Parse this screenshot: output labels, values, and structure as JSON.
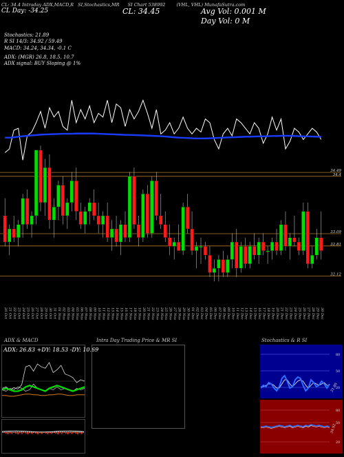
{
  "header": {
    "line1": [
      "CL: 34.4 Intraday ADX,MACD,R",
      "SI,Stochastics,MR",
      "SI Chart 538992",
      "(VHL, VHL) MunafaSutra.com"
    ],
    "line2_left": "CL Day: -34.25",
    "cl": "CL: 34.45",
    "avg_vol": "Avg Vol: 0.001 M",
    "day_vol": "Day Vol: 0   M",
    "stoch": "Stochastics: 21.89",
    "rsi": "R                SI 14/3: 34.92 / 59.49",
    "macd": "MACD: 34.24, 34.34, -0.1 C",
    "adx": "ADX:                                   (MGR) 26.8, 18.5, 10.7",
    "adx_signal": "ADX  signal:                                   BUY Sloping @ 1%"
  },
  "colors": {
    "up": "#00e000",
    "down": "#ff1a1a",
    "ma": "#1a3cff",
    "price_line": "#ffffff",
    "level": "#b07a2a",
    "rsi_bg": "#8a0000",
    "stoch_bg": "#000090"
  },
  "chart_data": [
    {
      "type": "candlestick",
      "ylim": [
        31.5,
        35.2
      ],
      "levels": [
        {
          "value": 34.49,
          "label": "34.49"
        },
        {
          "value": 34.4,
          "label": "34.4"
        },
        {
          "value": 33.09,
          "label": "33.09"
        },
        {
          "value": 32.81,
          "label": "32.81"
        },
        {
          "value": 32.12,
          "label": "32.12"
        }
      ],
      "x": [
        "20 Oct",
        "21 Oct",
        "22 Oct",
        "23 Oct",
        "24 Oct",
        "25 Oct",
        "26 Oct",
        "27 Oct",
        "28 Oct",
        "29 Oct",
        "30 Oct",
        "31 Oct",
        "01 Nov",
        "02 Nov",
        "03 Nov",
        "04 Nov",
        "05 Nov",
        "06 Nov",
        "07 Nov",
        "08 Nov",
        "09 Nov",
        "10 Nov",
        "11 Nov",
        "12 Nov",
        "13 Nov",
        "14 Nov",
        "15 Nov",
        "16 Nov",
        "17 Nov",
        "18 Nov",
        "19 Nov",
        "20 Nov",
        "21 Nov",
        "22 Nov",
        "23 Nov",
        "24 Nov",
        "25 Nov",
        "26 Nov",
        "27 Nov",
        "28 Nov",
        "29 Nov",
        "30 Nov",
        "01 Dec",
        "02 Dec",
        "03 Dec",
        "04 Dec",
        "05 Dec",
        "06 Dec",
        "07 Dec",
        "08 Dec",
        "09 Dec",
        "10 Dec",
        "11 Dec",
        "12 Dec",
        "13 Dec",
        "14 Dec",
        "15 Dec",
        "16 Dec",
        "17 Dec",
        "18 Dec",
        "19 Dec",
        "20 Dec",
        "21 Dec",
        "22 Dec",
        "23 Dec",
        "24 Dec",
        "25 Dec",
        "26 Dec",
        "27 Dec",
        "28 Dec",
        "29 Dec",
        "30 Dec"
      ],
      "candles": [
        [
          33.5,
          33.9,
          32.8,
          32.9
        ],
        [
          32.9,
          33.3,
          32.6,
          33.2
        ],
        [
          33.2,
          33.5,
          32.9,
          33.0
        ],
        [
          33.0,
          33.4,
          32.8,
          33.3
        ],
        [
          33.3,
          34.0,
          33.0,
          33.9
        ],
        [
          33.9,
          34.1,
          33.2,
          33.3
        ],
        [
          33.3,
          33.6,
          33.0,
          33.5
        ],
        [
          33.5,
          35.0,
          33.3,
          35.0
        ],
        [
          35.0,
          35.1,
          33.6,
          33.8
        ],
        [
          33.8,
          34.8,
          33.5,
          34.6
        ],
        [
          34.6,
          34.9,
          33.2,
          33.4
        ],
        [
          33.4,
          33.9,
          33.0,
          33.7
        ],
        [
          33.7,
          34.3,
          33.4,
          34.2
        ],
        [
          34.2,
          34.4,
          33.3,
          33.5
        ],
        [
          33.5,
          33.9,
          33.2,
          33.8
        ],
        [
          33.8,
          34.5,
          33.6,
          34.3
        ],
        [
          34.3,
          34.6,
          33.4,
          33.6
        ],
        [
          33.6,
          33.8,
          33.2,
          33.3
        ],
        [
          33.3,
          33.7,
          33.1,
          33.6
        ],
        [
          33.6,
          33.9,
          33.3,
          33.8
        ],
        [
          33.8,
          34.1,
          33.4,
          33.5
        ],
        [
          33.5,
          33.8,
          33.1,
          33.3
        ],
        [
          33.3,
          33.6,
          33.0,
          33.5
        ],
        [
          33.5,
          33.8,
          32.9,
          33.0
        ],
        [
          33.0,
          33.4,
          32.7,
          33.2
        ],
        [
          33.2,
          33.5,
          32.8,
          32.9
        ],
        [
          32.9,
          33.4,
          32.6,
          33.3
        ],
        [
          33.3,
          33.6,
          32.9,
          33.0
        ],
        [
          33.0,
          34.5,
          32.9,
          34.4
        ],
        [
          34.4,
          34.6,
          33.2,
          33.3
        ],
        [
          33.3,
          33.5,
          32.8,
          33.0
        ],
        [
          33.0,
          34.1,
          32.9,
          34.0
        ],
        [
          34.0,
          34.2,
          33.0,
          33.1
        ],
        [
          33.1,
          34.4,
          33.0,
          34.3
        ],
        [
          34.3,
          34.5,
          33.4,
          33.5
        ],
        [
          33.5,
          34.0,
          33.2,
          33.3
        ],
        [
          33.3,
          33.6,
          32.9,
          33.0
        ],
        [
          33.0,
          33.3,
          32.6,
          32.8
        ],
        [
          32.8,
          33.0,
          32.5,
          32.9
        ],
        [
          32.9,
          33.3,
          32.7,
          32.7
        ],
        [
          32.7,
          33.8,
          32.6,
          33.7
        ],
        [
          33.7,
          34.0,
          33.1,
          33.2
        ],
        [
          33.2,
          33.6,
          32.6,
          32.7
        ],
        [
          32.7,
          32.9,
          32.3,
          32.8
        ],
        [
          32.8,
          33.0,
          32.4,
          32.8
        ],
        [
          32.8,
          32.9,
          32.5,
          32.6
        ],
        [
          32.6,
          32.8,
          32.1,
          32.2
        ],
        [
          32.2,
          32.5,
          32.0,
          32.3
        ],
        [
          32.3,
          32.6,
          32.0,
          32.5
        ],
        [
          32.5,
          32.7,
          32.1,
          32.2
        ],
        [
          32.2,
          32.6,
          32.1,
          32.5
        ],
        [
          32.5,
          33.1,
          32.3,
          32.9
        ],
        [
          32.9,
          33.2,
          32.1,
          32.3
        ],
        [
          32.3,
          32.9,
          32.2,
          32.8
        ],
        [
          32.8,
          33.0,
          32.3,
          32.4
        ],
        [
          32.4,
          32.9,
          32.3,
          32.8
        ],
        [
          32.8,
          33.1,
          32.5,
          32.6
        ],
        [
          32.6,
          33.0,
          32.4,
          32.9
        ],
        [
          32.9,
          33.1,
          32.6,
          32.7
        ],
        [
          32.7,
          32.8,
          32.4,
          32.7
        ],
        [
          32.7,
          33.0,
          32.5,
          32.9
        ],
        [
          32.9,
          33.2,
          32.6,
          32.7
        ],
        [
          32.7,
          33.4,
          32.6,
          33.3
        ],
        [
          33.3,
          33.6,
          32.7,
          32.8
        ],
        [
          32.8,
          33.1,
          32.5,
          33.0
        ],
        [
          33.0,
          33.5,
          32.8,
          32.9
        ],
        [
          32.9,
          33.0,
          32.6,
          32.7
        ],
        [
          32.7,
          33.8,
          32.6,
          33.6
        ],
        [
          33.6,
          33.8,
          32.3,
          32.4
        ],
        [
          32.4,
          32.8,
          32.3,
          32.6
        ],
        [
          32.6,
          33.2,
          32.5,
          33.0
        ],
        [
          33.0,
          33.6,
          32.5,
          32.7
        ]
      ],
      "close_line": [
        40,
        38,
        28,
        27,
        44,
        31,
        29,
        24,
        18,
        27,
        16,
        21,
        18,
        26,
        28,
        12,
        24,
        17,
        22,
        15,
        24,
        19,
        21,
        12,
        24,
        14,
        16,
        26,
        17,
        22,
        18,
        12,
        19,
        27,
        17,
        30,
        28,
        24,
        30,
        27,
        21,
        27,
        30,
        27,
        29,
        22,
        24,
        33,
        38,
        30,
        27,
        31,
        22,
        24,
        27,
        30,
        24,
        27,
        35,
        30,
        21,
        28,
        22,
        38,
        34,
        27,
        29,
        33,
        30,
        27,
        29,
        33
      ],
      "ma_line": [
        32,
        32,
        31.8,
        31.5,
        31.2,
        31.0,
        30.8,
        30.6,
        30.4,
        30.3,
        30.2,
        30.1,
        30.0,
        29.9,
        29.9,
        29.9,
        29.8,
        29.8,
        29.8,
        29.8,
        29.8,
        29.9,
        30.0,
        30.1,
        30.2,
        30.3,
        30.4,
        30.5,
        30.5,
        30.6,
        30.7,
        30.8,
        30.9,
        31.0,
        31.1,
        31.2,
        31.4,
        31.6,
        31.8,
        32.0,
        32.1,
        32.2,
        32.3,
        32.4,
        32.4,
        32.4,
        32.3,
        32.2,
        32.1,
        32.0,
        31.9,
        31.8,
        31.7,
        31.6,
        31.5,
        31.5,
        31.4,
        31.3,
        31.3,
        31.2,
        31.1,
        31.1,
        31.0,
        31.0,
        31.0,
        31.1,
        31.2,
        31.3,
        31.3,
        31.4,
        31.5,
        31.5
      ]
    },
    {
      "type": "line",
      "title": "ADX  & MACD",
      "label": "ADX: 26.83  +DY: 18.53  -DY: 10.69"
    },
    {
      "type": "table",
      "title": "Intra  Day Trading Price  & MR                         SI"
    },
    {
      "type": "line",
      "title": "Stochastics & R                         SI",
      "stoch_ticks": [
        "80",
        "50",
        "20"
      ],
      "stoch_value": "21.89",
      "rsi_ticks": [
        "80",
        "50",
        "20"
      ],
      "rsi_value": "34.92"
    }
  ]
}
